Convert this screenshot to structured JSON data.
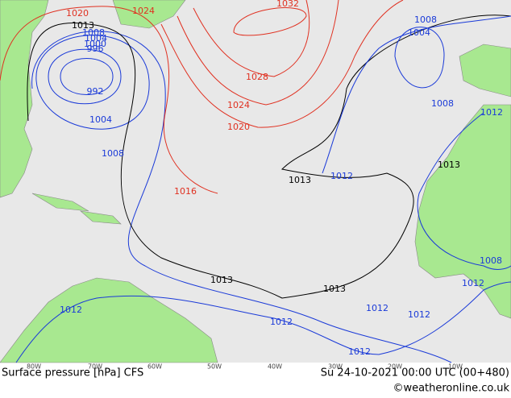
{
  "map": {
    "isobar_labels": [
      {
        "text": 1020,
        "color": "#e03020"
      },
      {
        "text": 1024,
        "color": "#e03020"
      },
      {
        "text": 1032,
        "color": "#e03020"
      },
      {
        "text": 1013,
        "color": "#000000"
      },
      {
        "text": 1008,
        "color": "#1a3ad8"
      },
      {
        "text": 1004,
        "color": "#1a3ad8"
      },
      {
        "text": 1000,
        "color": "#1a3ad8"
      },
      {
        "text": 996,
        "color": "#1a3ad8"
      },
      {
        "text": 992,
        "color": "#1a3ad8"
      },
      {
        "text": 1004,
        "color": "#1a3ad8"
      },
      {
        "text": 1008,
        "color": "#1a3ad8"
      },
      {
        "text": 1028,
        "color": "#e03020"
      },
      {
        "text": 1024,
        "color": "#e03020"
      },
      {
        "text": 1020,
        "color": "#e03020"
      },
      {
        "text": 1016,
        "color": "#e03020"
      },
      {
        "text": 1013,
        "color": "#000000"
      },
      {
        "text": 1012,
        "color": "#1a3ad8"
      },
      {
        "text": 1008,
        "color": "#1a3ad8"
      },
      {
        "text": 1004,
        "color": "#1a3ad8"
      },
      {
        "text": 1008,
        "color": "#1a3ad8"
      },
      {
        "text": 1012,
        "color": "#1a3ad8"
      },
      {
        "text": 1013,
        "color": "#000000"
      },
      {
        "text": 1013,
        "color": "#000000"
      },
      {
        "text": 1013,
        "color": "#000000"
      },
      {
        "text": 1012,
        "color": "#1a3ad8"
      },
      {
        "text": 1012,
        "color": "#1a3ad8"
      },
      {
        "text": 1012,
        "color": "#1a3ad8"
      },
      {
        "text": 1012,
        "color": "#1a3ad8"
      },
      {
        "text": 1012,
        "color": "#1a3ad8"
      },
      {
        "text": 1012,
        "color": "#1a3ad8"
      },
      {
        "text": 1008,
        "color": "#1a3ad8"
      }
    ],
    "longitudes": [
      "80W",
      "70W",
      "60W",
      "50W",
      "40W",
      "30W",
      "20W",
      "10W"
    ],
    "footer": {
      "title": "Surface pressure [hPa] CFS",
      "time": "Su 24-10-2021 00:00 UTC (00+480)",
      "credit": "©weatheronline.co.uk"
    }
  }
}
